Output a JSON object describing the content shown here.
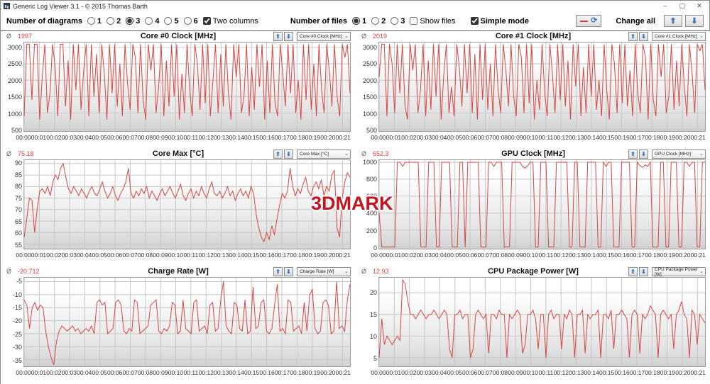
{
  "window": {
    "title": "Generic Log Viewer 3.1 - © 2015 Thomas Barth",
    "controls": {
      "minimize": "–",
      "maximize": "▢",
      "close": "✕"
    }
  },
  "toolbar": {
    "diagrams_label": "Number of diagrams",
    "diagram_options": [
      "1",
      "2",
      "3",
      "4",
      "5",
      "6"
    ],
    "diagrams_selected_index": 2,
    "two_columns_label": "Two columns",
    "two_columns_checked": true,
    "files_label": "Number of files",
    "file_options": [
      "1",
      "2",
      "3"
    ],
    "files_selected_index": 0,
    "show_files_label": "Show files",
    "show_files_checked": false,
    "simple_mode_label": "Simple mode",
    "simple_mode_checked": true,
    "refresh_icon": "⟳",
    "change_all_label": "Change all",
    "up_arrow": "⬆",
    "down_arrow": "⬇"
  },
  "watermark": "3DMARK",
  "avg_symbol": "Ø",
  "colors": {
    "series_line": "#d64541",
    "avg_value": "#d9413d",
    "gridline": "#c6c6c6",
    "plot_border": "#9b9b9b"
  },
  "x_tick_labels": [
    "00:00",
    "00:01",
    "00:02",
    "00:03",
    "00:04",
    "00:05",
    "00:06",
    "00:07",
    "00:08",
    "00:09",
    "00:10",
    "00:11",
    "00:12",
    "00:13",
    "00:14",
    "00:15",
    "00:16",
    "00:17",
    "00:18",
    "00:19",
    "00:20",
    "00:21"
  ],
  "chart_data": [
    {
      "type": "line",
      "title": "Core #0 Clock [MHz]",
      "avg": "1997",
      "selector_value": "Core #0 Clock [MHz]",
      "ylim": [
        450,
        3150
      ],
      "yticks": [
        3000,
        2500,
        2000,
        1500,
        1000,
        500
      ],
      "x_range": [
        "00:00",
        "00:21"
      ],
      "grid": true,
      "legend": "none",
      "values": [
        900,
        3100,
        3100,
        1400,
        3100,
        3100,
        800,
        2100,
        3100,
        1000,
        1600,
        3100,
        2400,
        900,
        3100,
        3100,
        1200,
        2600,
        800,
        3100,
        1700,
        3100,
        1100,
        2300,
        3100,
        900,
        3100,
        1500,
        2800,
        1000,
        3100,
        2200,
        800,
        3100,
        1600,
        3100,
        1200,
        2500,
        900,
        3100,
        1900,
        1100,
        3100,
        2700,
        1000,
        3100,
        1400,
        800,
        3100,
        2300,
        3100,
        1000,
        1800,
        3100,
        900,
        2600,
        1200,
        3100,
        1500,
        3100,
        800,
        2200,
        1000,
        3100,
        1700,
        900,
        3100,
        2500,
        1100,
        3100,
        1300,
        3100,
        900,
        2000,
        3100,
        1000,
        2800,
        1200,
        3100,
        1600,
        800,
        3100,
        2100,
        3100,
        1000,
        1500,
        3100,
        900,
        2400,
        1100,
        3100,
        1800,
        3100,
        800,
        2600,
        1000,
        3100,
        1300,
        900,
        3100,
        2200,
        1200,
        3100,
        1600,
        3100,
        1000,
        2000,
        800,
        3100,
        1400,
        3100,
        1100,
        2500,
        900,
        3100,
        1700,
        1000,
        3100,
        2300,
        1200,
        3100,
        1500,
        900,
        3100,
        2700,
        3100,
        1600
      ]
    },
    {
      "type": "line",
      "title": "Core #1 Clock [MHz]",
      "avg": "2019",
      "selector_value": "Core #1 Clock [MHz]",
      "ylim": [
        450,
        3150
      ],
      "yticks": [
        3000,
        2500,
        2000,
        1500,
        1000,
        500
      ],
      "x_range": [
        "00:00",
        "00:21"
      ],
      "grid": true,
      "legend": "none",
      "values": [
        2100,
        3100,
        3100,
        900,
        3100,
        2500,
        1000,
        3100,
        1600,
        3100,
        1200,
        800,
        3100,
        2300,
        3100,
        1000,
        1700,
        3100,
        900,
        2600,
        1100,
        3100,
        1500,
        3100,
        800,
        2200,
        3100,
        1000,
        1800,
        900,
        3100,
        2400,
        1200,
        3100,
        1600,
        3100,
        1000,
        2800,
        800,
        3100,
        1400,
        3100,
        1100,
        2500,
        900,
        3100,
        1700,
        1000,
        3100,
        2300,
        1200,
        3100,
        1500,
        900,
        3100,
        2700,
        1000,
        3100,
        1300,
        3100,
        800,
        2000,
        1100,
        3100,
        1600,
        900,
        3100,
        2200,
        1000,
        3100,
        1400,
        3100,
        1200,
        2600,
        800,
        3100,
        1800,
        3100,
        900,
        2400,
        1000,
        3100,
        1500,
        3100,
        1100,
        2000,
        900,
        3100,
        1700,
        800,
        3100,
        2500,
        1000,
        3100,
        1300,
        3100,
        1200,
        2300,
        900,
        3100,
        1600,
        1000,
        3100,
        2700,
        800,
        3100,
        1400,
        900,
        3100,
        2100,
        3100,
        1000,
        1500,
        3100,
        1100,
        2600,
        1200,
        3100,
        1800,
        900,
        3100,
        2200,
        1000,
        3100,
        2900,
        3100,
        1700
      ]
    },
    {
      "type": "line",
      "title": "Core Max [°C]",
      "avg": "75.18",
      "selector_value": "Core Max [°C]",
      "ylim": [
        53,
        91.5
      ],
      "yticks": [
        90,
        85,
        80,
        75,
        70,
        65,
        60,
        55
      ],
      "x_range": [
        "00:00",
        "00:21"
      ],
      "grid": true,
      "legend": "none",
      "values": [
        58,
        66,
        75,
        74,
        60,
        70,
        78,
        79,
        77,
        80,
        76,
        82,
        85,
        83,
        88,
        90,
        84,
        79,
        77,
        80,
        78,
        76,
        79,
        77,
        75,
        78,
        80,
        77,
        76,
        79,
        82,
        78,
        75,
        77,
        80,
        76,
        74,
        77,
        79,
        82,
        88,
        77,
        75,
        78,
        76,
        79,
        77,
        80,
        75,
        78,
        76,
        74,
        77,
        79,
        76,
        78,
        80,
        77,
        75,
        78,
        81,
        76,
        74,
        77,
        79,
        75,
        78,
        76,
        80,
        77,
        75,
        79,
        82,
        77,
        76,
        78,
        75,
        77,
        80,
        76,
        78,
        74,
        77,
        79,
        76,
        78,
        75,
        80,
        77,
        68,
        62,
        58,
        56,
        60,
        57,
        63,
        59,
        66,
        72,
        77,
        75,
        78,
        88,
        80,
        76,
        79,
        77,
        81,
        84,
        78,
        76,
        80,
        82,
        79,
        83,
        76,
        80,
        78,
        85,
        87,
        62,
        58,
        75,
        82,
        86,
        84
      ]
    },
    {
      "type": "line",
      "title": "GPU Clock [MHz]",
      "avg": "652.3",
      "selector_value": "GPU Clock [MHz]",
      "ylim": [
        -20,
        1025
      ],
      "yticks": [
        1000,
        800,
        600,
        400,
        200,
        0
      ],
      "x_range": [
        "00:00",
        "00:21"
      ],
      "grid": true,
      "legend": "none",
      "values": [
        400,
        0,
        0,
        0,
        0,
        0,
        0,
        1000,
        1000,
        950,
        1000,
        1000,
        1000,
        1000,
        1000,
        1000,
        0,
        0,
        0,
        1000,
        1000,
        1000,
        0,
        0,
        1000,
        1000,
        1000,
        1000,
        0,
        0,
        0,
        1000,
        1000,
        0,
        1000,
        1000,
        1000,
        1000,
        1000,
        0,
        0,
        0,
        1000,
        1000,
        950,
        1000,
        1000,
        1000,
        0,
        0,
        0,
        1000,
        1000,
        1000,
        1000,
        950,
        930,
        960,
        1000,
        1000,
        0,
        0,
        1000,
        1000,
        1000,
        0,
        0,
        0,
        1000,
        1000,
        1000,
        1000,
        1000,
        0,
        0,
        1000,
        1000,
        0,
        0,
        0,
        1000,
        1000,
        1000,
        1000,
        0,
        0,
        1000,
        950,
        1000,
        1000,
        0,
        0,
        0,
        1000,
        1000,
        1000,
        1000,
        0,
        0,
        1000,
        960,
        940,
        970,
        950,
        1000,
        0,
        0,
        0,
        1000,
        1000,
        0,
        0,
        1000,
        1000,
        1000,
        0,
        0,
        1000,
        1000,
        950,
        1000,
        1000,
        0,
        0,
        1000,
        1000
      ]
    },
    {
      "type": "line",
      "title": "Charge Rate [W]",
      "avg": "-20.712",
      "selector_value": "Charge Rate [W]",
      "ylim": [
        -37.5,
        -3.5
      ],
      "yticks": [
        -5,
        -10,
        -15,
        -20,
        -25,
        -30,
        -35
      ],
      "x_range": [
        "00:00",
        "00:21"
      ],
      "grid": true,
      "legend": "none",
      "values": [
        -12,
        -14,
        -23,
        -15,
        -13,
        -16,
        -14,
        -15,
        -24,
        -30,
        -34,
        -37,
        -28,
        -24,
        -22,
        -23,
        -24,
        -23,
        -22,
        -24,
        -23,
        -25,
        -24,
        -23,
        -24,
        -22,
        -25,
        -13,
        -12,
        -14,
        -13,
        -25,
        -24,
        -23,
        -13,
        -12,
        -14,
        -24,
        -25,
        -23,
        -24,
        -12,
        -13,
        -25,
        -24,
        -23,
        -22,
        -14,
        -13,
        -12,
        -24,
        -25,
        -23,
        -24,
        -22,
        -13,
        -14,
        -25,
        -24,
        -12,
        -23,
        -24,
        -25,
        -13,
        -12,
        -24,
        -23,
        -22,
        -25,
        -14,
        -13,
        -24,
        -23,
        -12,
        -5,
        -22,
        -24,
        -25,
        -13,
        -14,
        -23,
        -24,
        -12,
        -25,
        -24,
        -7,
        -23,
        -22,
        -13,
        -12,
        -24,
        -25,
        -23,
        -14,
        -6,
        -24,
        -23,
        -25,
        -12,
        -13,
        -24,
        -23,
        -22,
        -25,
        -13,
        -24,
        -10,
        -8,
        -23,
        -25,
        -24,
        -13,
        -12,
        -14,
        -25,
        -24,
        -5,
        -23,
        -22,
        -24,
        -12,
        -6
      ]
    },
    {
      "type": "line",
      "title": "CPU Package Power [W]",
      "avg": "12.93",
      "selector_value": "CPU Package Power [W]",
      "ylim": [
        3,
        23.5
      ],
      "yticks": [
        20,
        15,
        10,
        5
      ],
      "x_range": [
        "00:00",
        "00:21"
      ],
      "grid": true,
      "legend": "none",
      "values": [
        5,
        14,
        8,
        10,
        9,
        8,
        9,
        10,
        9,
        23,
        22,
        18,
        15,
        15,
        14,
        15,
        16,
        15,
        14,
        15,
        15,
        16,
        15,
        14,
        15,
        16,
        15,
        7,
        5,
        15,
        15,
        16,
        14,
        15,
        15,
        5,
        7,
        15,
        16,
        15,
        14,
        15,
        6,
        15,
        15,
        14,
        16,
        15,
        15,
        5,
        15,
        14,
        15,
        16,
        15,
        6,
        8,
        15,
        15,
        16,
        14,
        7,
        15,
        15,
        5,
        15,
        16,
        14,
        15,
        15,
        7,
        15,
        14,
        16,
        15,
        5,
        15,
        15,
        16,
        6,
        15,
        14,
        15,
        15,
        16,
        5,
        15,
        15,
        14,
        16,
        7,
        15,
        15,
        16,
        15,
        14,
        5,
        15,
        16,
        15,
        6,
        15,
        14,
        15,
        17,
        16,
        15,
        5,
        15,
        16,
        15,
        14,
        15,
        7,
        15,
        16,
        18,
        15,
        14,
        5,
        16,
        15,
        8,
        15,
        14,
        13
      ]
    }
  ]
}
